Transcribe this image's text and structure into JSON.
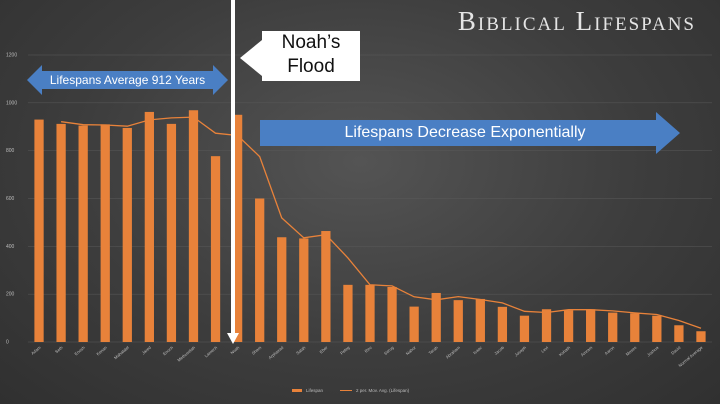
{
  "title": "Biblical Lifespans",
  "annotations": {
    "left_arrow": "Lifespans Average 912 Years",
    "right_arrow": "Lifespans Decrease Exponentially",
    "flood_line1": "Noah’s",
    "flood_line2": "Flood"
  },
  "colors": {
    "bar": "#e8823a",
    "trend": "#e8823a",
    "arrow_fill": "#4a7fc4",
    "flood_line": "#ffffff",
    "background": "#3f3f3f"
  },
  "chart_data": {
    "type": "bar",
    "title": "Biblical Lifespans",
    "categories": [
      "Adam",
      "Seth",
      "Enosh",
      "Kenan",
      "Mahalalel",
      "Jared",
      "Enoch",
      "Methuselah",
      "Lamech",
      "Noah",
      "Shem",
      "Arphaxad",
      "Salah",
      "Eber",
      "Peleg",
      "Reu",
      "Serug",
      "Nahor",
      "Terah",
      "Abraham",
      "Isaac",
      "Jacob",
      "Joseph",
      "Levi",
      "Kohath",
      "Amram",
      "Aaron",
      "Moses",
      "Joshua",
      "David",
      "Normal Average"
    ],
    "series": [
      {
        "name": "Lifespan",
        "type": "bar",
        "values": [
          930,
          912,
          905,
          910,
          895,
          962,
          912,
          969,
          777,
          950,
          600,
          438,
          433,
          464,
          239,
          239,
          230,
          148,
          205,
          175,
          180,
          147,
          110,
          137,
          133,
          137,
          123,
          120,
          110,
          70,
          45
        ]
      },
      {
        "name": "2 per. Mov. Avg. (Lifespan)",
        "type": "line",
        "values": [
          null,
          921,
          908.5,
          907.5,
          902.5,
          928.5,
          937,
          940.5,
          873,
          863.5,
          775,
          519,
          435.5,
          448.5,
          351.5,
          239,
          234.5,
          189,
          176.5,
          190,
          177.5,
          163.5,
          128.5,
          123.5,
          135,
          135,
          130,
          121.5,
          115,
          90,
          57.5
        ]
      }
    ],
    "ylim": [
      0,
      1200
    ],
    "yticks": [
      "0",
      "200",
      "400",
      "600",
      "800",
      "1000",
      "1200"
    ],
    "grid": true,
    "legend": "bottom",
    "flood_marker_after": "Noah"
  }
}
